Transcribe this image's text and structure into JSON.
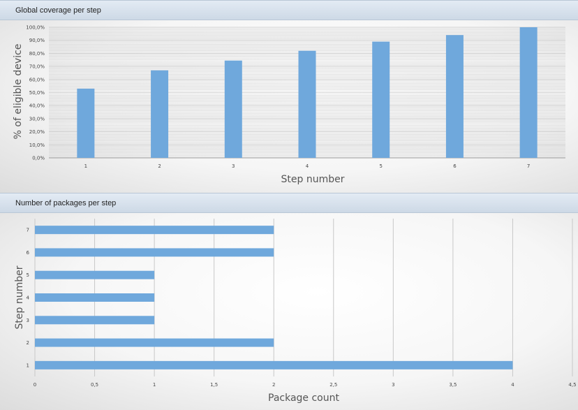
{
  "panels": [
    {
      "title": "Global coverage per step"
    },
    {
      "title": "Number of packages per step"
    }
  ],
  "chart_data": [
    {
      "type": "bar",
      "orientation": "vertical",
      "categories": [
        "1",
        "2",
        "3",
        "4",
        "5",
        "6",
        "7"
      ],
      "values": [
        53,
        67,
        74.5,
        82,
        89,
        94,
        100
      ],
      "xlabel": "Step number",
      "ylabel": "% of eligible device",
      "ylim": [
        0,
        100
      ],
      "yticks": [
        "0,0%",
        "10,0%",
        "20,0%",
        "30,0%",
        "40,0%",
        "50,0%",
        "60,0%",
        "70,0%",
        "80,0%",
        "90,0%",
        "100,0%"
      ],
      "grid": true,
      "bar_color": "#6fa8dc"
    },
    {
      "type": "bar",
      "orientation": "horizontal",
      "categories": [
        "1",
        "2",
        "3",
        "4",
        "5",
        "6",
        "7"
      ],
      "values": [
        4,
        2,
        1,
        1,
        1,
        2,
        2
      ],
      "xlabel": "Package count",
      "ylabel": "Step number",
      "xlim": [
        0,
        4.5
      ],
      "xticks": [
        "0",
        "0,5",
        "1",
        "1,5",
        "2",
        "2,5",
        "3",
        "3,5",
        "4",
        "4,5"
      ],
      "grid": true,
      "bar_color": "#6fa8dc"
    }
  ]
}
